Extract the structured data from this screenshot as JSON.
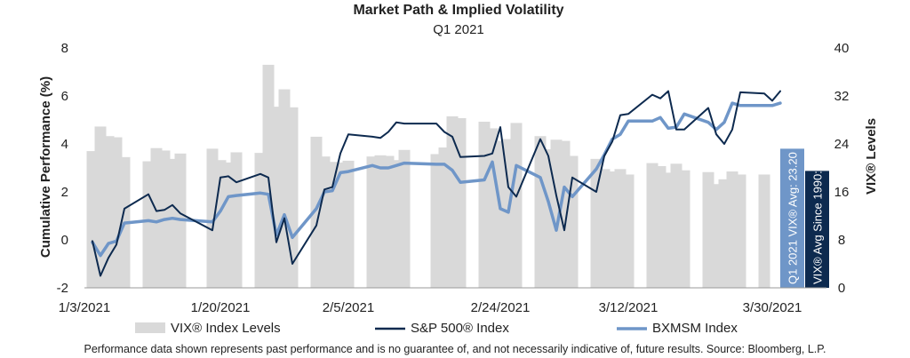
{
  "chart_data": {
    "type": "line",
    "title": "Market Path & Implied Volatility",
    "subtitle": "Q1 2021",
    "ylabel": "Cumulative Performance (%)",
    "ylabel2": "VIX® Levels",
    "ylim": [
      -2,
      8
    ],
    "y2lim": [
      0,
      40
    ],
    "yticks": [
      "8",
      "6",
      "4",
      "2",
      "0",
      "-2"
    ],
    "y2ticks": [
      "40",
      "32",
      "24",
      "16",
      "8",
      "0"
    ],
    "xticks": [
      "1/3/2021",
      "1/20/2021",
      "2/5/2021",
      "2/24/2021",
      "3/12/2021",
      "3/30/2021"
    ],
    "grid": false,
    "legend_position": "bottom",
    "series": [
      {
        "name": "VIX® Index Levels",
        "kind": "bar",
        "axis": "right",
        "color": "#d9d9d9",
        "values": [
          22.8,
          26.9,
          25.3,
          25.1,
          21.8,
          21.1,
          23.3,
          22.9,
          21.5,
          22.4,
          23.2,
          21.3,
          20.9,
          22.6,
          22.5,
          37.2,
          30.2,
          33.1,
          30.1,
          25.2,
          21.9,
          21.0,
          20.9,
          21.2,
          21.9,
          22.1,
          22.0,
          21.3,
          23.0,
          22.3,
          23.4,
          28.6,
          28.3,
          27.7,
          26.6,
          24.5,
          24.8,
          27.5,
          25.3,
          23.1,
          24.7,
          24.5,
          22.0,
          21.5,
          19.8,
          19.4,
          19.8,
          18.9,
          20.8,
          20.3,
          19.2,
          20.7,
          19.6,
          19.3,
          17.3,
          18.1,
          19.4,
          18.9,
          18.9
        ],
        "dates": [
          "1/4",
          "1/5",
          "1/6",
          "1/7",
          "1/8",
          "1/11",
          "1/12",
          "1/13",
          "1/14",
          "1/15",
          "1/19",
          "1/20",
          "1/21",
          "1/22",
          "1/25",
          "1/26",
          "1/27",
          "1/28",
          "1/29",
          "2/1",
          "2/2",
          "2/3",
          "2/4",
          "2/5",
          "2/8",
          "2/9",
          "2/10",
          "2/11",
          "2/12",
          "2/16",
          "2/17",
          "2/18",
          "2/19",
          "2/22",
          "2/23",
          "2/24",
          "2/25",
          "2/26",
          "3/1",
          "3/2",
          "3/3",
          "3/4",
          "3/5",
          "3/8",
          "3/9",
          "3/10",
          "3/11",
          "3/12",
          "3/15",
          "3/16",
          "3/17",
          "3/18",
          "3/19",
          "3/22",
          "3/23",
          "3/24",
          "3/25",
          "3/26",
          "3/29"
        ]
      },
      {
        "name": "S&P 500® Index",
        "kind": "line",
        "axis": "left",
        "color": "#0d2a4f",
        "x": [
          "1/4",
          "1/5",
          "1/6",
          "1/7",
          "1/8",
          "1/11",
          "1/12",
          "1/13",
          "1/14",
          "1/15",
          "1/19",
          "1/20",
          "1/21",
          "1/22",
          "1/25",
          "1/26",
          "1/27",
          "1/28",
          "1/29",
          "2/1",
          "2/2",
          "2/3",
          "2/4",
          "2/5",
          "2/8",
          "2/9",
          "2/10",
          "2/11",
          "2/12",
          "2/16",
          "2/17",
          "2/18",
          "2/19",
          "2/22",
          "2/23",
          "2/24",
          "2/25",
          "2/26",
          "3/1",
          "3/2",
          "3/3",
          "3/4",
          "3/5",
          "3/8",
          "3/9",
          "3/10",
          "3/11",
          "3/12",
          "3/15",
          "3/16",
          "3/17",
          "3/18",
          "3/19",
          "3/22",
          "3/23",
          "3/24",
          "3/25",
          "3/26",
          "3/29",
          "3/30",
          "3/31"
        ],
        "values": [
          -0.05,
          -1.5,
          -0.75,
          -0.2,
          1.3,
          1.9,
          1.2,
          1.25,
          1.45,
          1.1,
          0.4,
          2.6,
          2.65,
          2.4,
          2.75,
          2.6,
          -0.1,
          0.9,
          -1.0,
          0.6,
          2.1,
          2.2,
          3.6,
          4.4,
          4.3,
          4.25,
          4.5,
          4.9,
          4.85,
          4.85,
          4.5,
          4.3,
          3.45,
          3.5,
          3.6,
          4.7,
          2.2,
          1.8,
          4.2,
          3.5,
          1.85,
          0.4,
          2.6,
          2.0,
          3.5,
          4.1,
          5.2,
          5.25,
          6.05,
          5.9,
          6.2,
          4.6,
          4.6,
          5.5,
          4.4,
          4.0,
          4.6,
          6.15,
          6.1,
          5.8,
          6.2
        ]
      },
      {
        "name": "BXMSM Index",
        "kind": "line",
        "axis": "left",
        "color": "#6f96c8",
        "x": [
          "1/4",
          "1/5",
          "1/6",
          "1/7",
          "1/8",
          "1/11",
          "1/12",
          "1/13",
          "1/14",
          "1/15",
          "1/19",
          "1/20",
          "1/21",
          "1/22",
          "1/25",
          "1/26",
          "1/27",
          "1/28",
          "1/29",
          "2/1",
          "2/2",
          "2/3",
          "2/4",
          "2/5",
          "2/8",
          "2/9",
          "2/10",
          "2/11",
          "2/12",
          "2/16",
          "2/17",
          "2/18",
          "2/19",
          "2/22",
          "2/23",
          "2/24",
          "2/25",
          "2/26",
          "3/1",
          "3/2",
          "3/3",
          "3/4",
          "3/5",
          "3/8",
          "3/9",
          "3/10",
          "3/11",
          "3/12",
          "3/15",
          "3/16",
          "3/17",
          "3/18",
          "3/19",
          "3/22",
          "3/23",
          "3/24",
          "3/25",
          "3/26",
          "3/29",
          "3/30",
          "3/31"
        ],
        "values": [
          -0.1,
          -0.65,
          -0.15,
          -0.05,
          0.7,
          0.8,
          0.75,
          0.85,
          0.9,
          0.85,
          0.75,
          1.2,
          1.8,
          1.85,
          1.95,
          1.9,
          0.2,
          1.05,
          0.1,
          1.3,
          2.0,
          2.05,
          2.8,
          2.85,
          3.1,
          3.0,
          3.0,
          3.1,
          3.2,
          3.15,
          3.15,
          2.9,
          2.4,
          2.5,
          3.25,
          1.3,
          1.15,
          3.1,
          2.6,
          1.6,
          0.4,
          2.2,
          1.8,
          2.95,
          3.55,
          4.2,
          4.4,
          4.95,
          4.95,
          5.1,
          4.65,
          4.7,
          5.25,
          4.9,
          4.6,
          4.9,
          5.7,
          5.6,
          5.6,
          5.6,
          5.7
        ]
      }
    ],
    "reference_bars": [
      {
        "label": "Q1 2021 VIX® Avg: 23.20",
        "value": 23.2,
        "color": "#6f96c8"
      },
      {
        "label": "VIX® Avg Since 1990: 19.50",
        "value": 19.5,
        "color": "#0d2a4f"
      }
    ]
  },
  "legend": {
    "vix": "VIX® Index Levels",
    "sp500": "S&P 500® Index",
    "bxm": "BXMSM Index"
  },
  "footnote": "Performance data shown represents past performance and is no guarantee of, and not necessarily indicative of, future results. Source: Bloomberg, L.P."
}
